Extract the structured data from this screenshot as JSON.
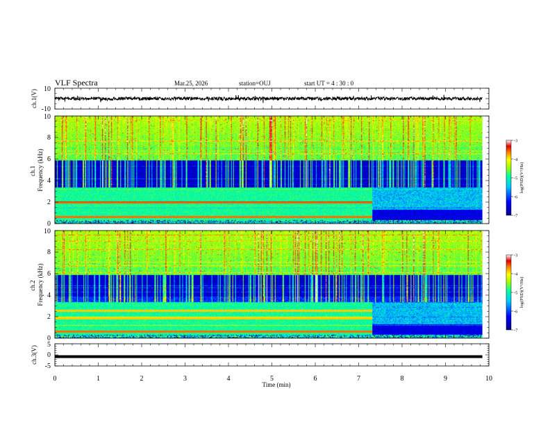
{
  "header": {
    "title": "VLF Spectra",
    "date": "Mar.25, 2026",
    "station": "station=OUJ",
    "start_ut": "start  UT =   4 : 30 : 0"
  },
  "chart_data": [
    {
      "type": "line",
      "name": "ch1-waveform",
      "ylabel": "ch.1(V)",
      "ylim": [
        -10,
        10
      ],
      "ytick_labels": [
        "10",
        "-10"
      ],
      "xlim": [
        0,
        10
      ],
      "description_values": {
        "mean": 0,
        "amplitude": 1.6
      }
    },
    {
      "type": "heatmap",
      "name": "ch1-spectrogram",
      "ylabel": "ch.1\nFrequency (kHz)",
      "ylim": [
        0,
        10
      ],
      "ytick_labels": [
        "0",
        "2",
        "4",
        "6",
        "8",
        "10"
      ],
      "xlim": [
        0,
        10
      ],
      "data_end_min": 9.85,
      "transition_min": 7.3
    },
    {
      "type": "heatmap",
      "name": "ch2-spectrogram",
      "ylabel": "ch.2\nFrequency (kHz)",
      "ylim": [
        0,
        10
      ],
      "ytick_labels": [
        "0",
        "2",
        "4",
        "6",
        "8",
        "10"
      ],
      "xlim": [
        0,
        10
      ],
      "data_end_min": 9.85,
      "transition_min": 7.3
    },
    {
      "type": "line",
      "name": "ch3-waveform",
      "ylabel": "ch.3(V)",
      "ylim": [
        -5,
        5
      ],
      "ytick_labels": [
        "5",
        "0",
        "-5"
      ],
      "xlim": [
        0,
        10
      ],
      "level_V": -0.8
    }
  ],
  "x_axis": {
    "label": "Time  (min)",
    "tick_labels": [
      "0",
      "1",
      "2",
      "3",
      "4",
      "5",
      "6",
      "7",
      "8",
      "9",
      "10"
    ]
  },
  "colorbar": {
    "title": "log(PSD)(V²/Hz)",
    "tick_labels": [
      "-3",
      "-4",
      "-5",
      "-6",
      "-7"
    ],
    "range": [
      -7,
      -3
    ],
    "colors": [
      "#00008b",
      "#0000ff",
      "#00c8ff",
      "#00ffa0",
      "#a0ff00",
      "#ffff00",
      "#ff8000",
      "#e00000",
      "#ffffff"
    ]
  }
}
